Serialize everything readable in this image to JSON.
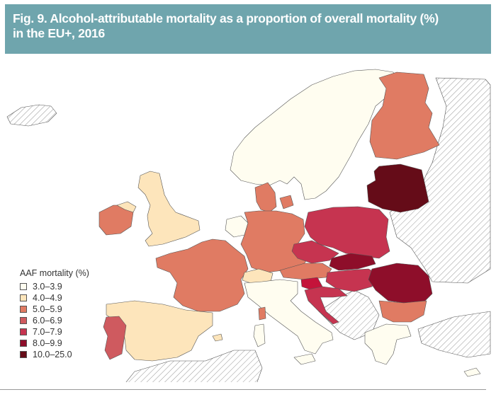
{
  "header": {
    "title_line1": "Fig. 9. Alcohol-attributable mortality as a proportion of overall mortality (%)",
    "title_line2": "in the EU+, 2016"
  },
  "legend": {
    "title": "AAF mortality (%)",
    "items": [
      {
        "label": "3.0–3.9",
        "color": "#fffdf0"
      },
      {
        "label": "4.0–4.9",
        "color": "#fde5bb"
      },
      {
        "label": "5.0–5.9",
        "color": "#e07b63"
      },
      {
        "label": "6.0–6.9",
        "color": "#cf5a5f"
      },
      {
        "label": "7.0–7.9",
        "color": "#c63450"
      },
      {
        "label": "8.0–9.9",
        "color": "#8e0e2a"
      },
      {
        "label": "10.0–25.0",
        "color": "#650c18"
      }
    ]
  },
  "colors": {
    "header_bg": "#6fa5ad",
    "no_data_hatch": "#9a9a9a",
    "border": "#555555"
  }
}
